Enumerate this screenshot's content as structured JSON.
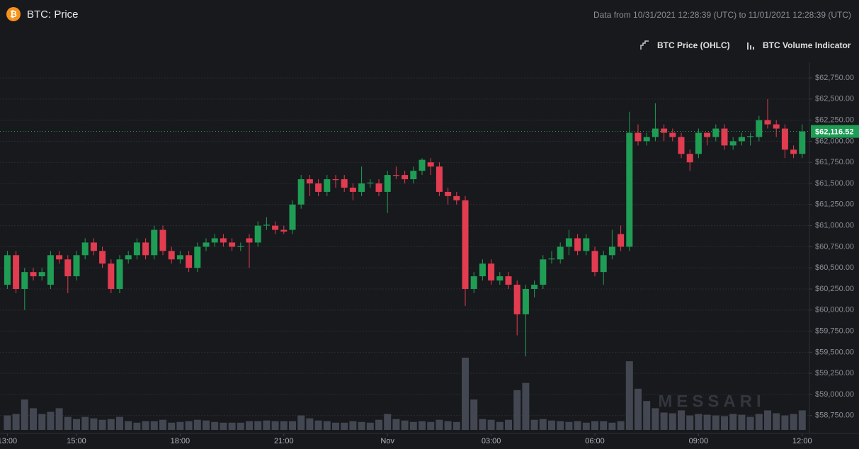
{
  "chart_data": {
    "type": "candlestick",
    "title": "BTC: Price",
    "subtitle": "Data from 10/31/2021 12:28:39 (UTC) to 11/01/2021 12:28:39 (UTC)",
    "legend": [
      "BTC Price (OHLC)",
      "BTC Volume Indicator"
    ],
    "watermark": "MESSARI",
    "last_price_label": "$62,116.52",
    "up_color": "#1f9d55",
    "down_color": "#e23c50",
    "volume_color": "#434751",
    "grid": true,
    "xticks": [
      {
        "value": 0,
        "label": "13:00"
      },
      {
        "value": 8,
        "label": "15:00"
      },
      {
        "value": 20,
        "label": "18:00"
      },
      {
        "value": 32,
        "label": "21:00"
      },
      {
        "value": 44,
        "label": "Nov"
      },
      {
        "value": 56,
        "label": "03:00"
      },
      {
        "value": 68,
        "label": "06:00"
      },
      {
        "value": 80,
        "label": "09:00"
      },
      {
        "value": 92,
        "label": "12:00"
      }
    ],
    "ylim": [
      58580,
      62935
    ],
    "yticks": [
      {
        "value": 58750,
        "label": "$58,750.00"
      },
      {
        "value": 59000,
        "label": "$59,000.00"
      },
      {
        "value": 59250,
        "label": "$59,250.00"
      },
      {
        "value": 59500,
        "label": "$59,500.00"
      },
      {
        "value": 59750,
        "label": "$59,750.00"
      },
      {
        "value": 60000,
        "label": "$60,000.00"
      },
      {
        "value": 60250,
        "label": "$60,250.00"
      },
      {
        "value": 60500,
        "label": "$60,500.00"
      },
      {
        "value": 60750,
        "label": "$60,750.00"
      },
      {
        "value": 61000,
        "label": "$61,000.00"
      },
      {
        "value": 61250,
        "label": "$61,250.00"
      },
      {
        "value": 61500,
        "label": "$61,500.00"
      },
      {
        "value": 61750,
        "label": "$61,750.00"
      },
      {
        "value": 62000,
        "label": "$62,000.00"
      },
      {
        "value": 62250,
        "label": "$62,250.00"
      },
      {
        "value": 62500,
        "label": "$62,500.00"
      },
      {
        "value": 62750,
        "label": "$62,750.00"
      }
    ],
    "open": [
      60300,
      60650,
      60250,
      60450,
      60400,
      60300,
      60650,
      60600,
      60400,
      60650,
      60800,
      60700,
      60550,
      60250,
      60600,
      60650,
      60800,
      60650,
      60950,
      60700,
      60600,
      60650,
      60500,
      60750,
      60800,
      60850,
      60800,
      60750,
      60850,
      60800,
      61000,
      61000,
      60950,
      60950,
      61250,
      61550,
      61500,
      61400,
      61550,
      61550,
      61450,
      61400,
      61500,
      61500,
      61400,
      61600,
      61600,
      61550,
      61650,
      61750,
      61700,
      61400,
      61350,
      61300,
      60250,
      60400,
      60550,
      60350,
      60400,
      60300,
      59950,
      60250,
      60300,
      60600,
      60600,
      60750,
      60850,
      60700,
      60700,
      60450,
      60650,
      60900,
      60750,
      62100,
      62000,
      62050,
      62150,
      62100,
      62050,
      61850,
      61850,
      62100,
      62050,
      62150,
      61950,
      62000,
      62050,
      62050,
      62250,
      62200,
      62150,
      61900,
      61850
    ],
    "close": [
      60650,
      60250,
      60450,
      60400,
      60450,
      60650,
      60600,
      60400,
      60650,
      60800,
      60700,
      60550,
      60250,
      60600,
      60650,
      60800,
      60650,
      60950,
      60700,
      60600,
      60650,
      60500,
      60750,
      60800,
      60850,
      60800,
      60750,
      60760,
      60800,
      61000,
      61010,
      60950,
      60930,
      61250,
      61550,
      61500,
      61400,
      61550,
      61540,
      61450,
      61400,
      61500,
      61510,
      61400,
      61600,
      61590,
      61550,
      61650,
      61780,
      61700,
      61400,
      61350,
      61300,
      60250,
      60400,
      60550,
      60350,
      60400,
      60300,
      59950,
      60250,
      60300,
      60600,
      60610,
      60750,
      60850,
      60700,
      60850,
      60450,
      60650,
      60750,
      60750,
      62100,
      62000,
      62050,
      62150,
      62100,
      62050,
      61850,
      61750,
      62100,
      62050,
      62150,
      61950,
      62000,
      62050,
      62060,
      62250,
      62200,
      62150,
      61900,
      61850,
      62116.52
    ],
    "high": [
      60700,
      60700,
      60500,
      60500,
      60500,
      60700,
      60700,
      60650,
      60700,
      60850,
      60850,
      60750,
      60600,
      60650,
      60700,
      60850,
      60850,
      61000,
      61000,
      60750,
      60700,
      60700,
      60800,
      60850,
      60900,
      60900,
      60850,
      60800,
      60900,
      61050,
      61100,
      61050,
      61000,
      61300,
      61600,
      61600,
      61550,
      61600,
      61600,
      61600,
      61500,
      61700,
      61550,
      61550,
      61650,
      61700,
      61650,
      61700,
      61800,
      61800,
      61750,
      61450,
      61400,
      61350,
      60450,
      60600,
      60600,
      60450,
      60450,
      60350,
      60300,
      60350,
      60650,
      60700,
      60800,
      60950,
      60900,
      60900,
      60750,
      60700,
      60950,
      61000,
      62350,
      62200,
      62100,
      62450,
      62200,
      62150,
      62100,
      61900,
      62150,
      62100,
      62200,
      62200,
      62050,
      62100,
      62100,
      62300,
      62500,
      62250,
      62200,
      61950,
      62200
    ],
    "low": [
      60250,
      60200,
      60000,
      60350,
      60350,
      60250,
      60550,
      60200,
      60350,
      60600,
      60650,
      60500,
      60200,
      60200,
      60550,
      60600,
      60600,
      60600,
      60650,
      60550,
      60550,
      60450,
      60450,
      60700,
      60750,
      60750,
      60700,
      60700,
      60500,
      60750,
      60950,
      60900,
      60900,
      60900,
      61200,
      61350,
      61350,
      61350,
      61450,
      61400,
      61300,
      61350,
      61450,
      61350,
      61150,
      61550,
      61500,
      61500,
      61600,
      61600,
      61350,
      61250,
      61250,
      60050,
      60200,
      60350,
      60300,
      60300,
      60250,
      59700,
      59450,
      60150,
      60250,
      60550,
      60550,
      60650,
      60650,
      60650,
      60400,
      60300,
      60600,
      60700,
      60700,
      61950,
      61950,
      62000,
      62000,
      62000,
      61800,
      61650,
      61800,
      61950,
      62000,
      61900,
      61900,
      61950,
      61950,
      62000,
      62150,
      62050,
      61800,
      61800,
      61800
    ],
    "volume": [
      20,
      22,
      42,
      30,
      22,
      25,
      30,
      18,
      15,
      18,
      16,
      14,
      15,
      18,
      12,
      10,
      12,
      12,
      14,
      10,
      11,
      12,
      14,
      13,
      11,
      10,
      10,
      10,
      12,
      12,
      13,
      12,
      12,
      12,
      20,
      16,
      13,
      12,
      10,
      10,
      12,
      11,
      10,
      14,
      22,
      15,
      13,
      11,
      12,
      11,
      14,
      12,
      11,
      100,
      42,
      15,
      14,
      11,
      14,
      55,
      65,
      14,
      15,
      13,
      12,
      11,
      12,
      10,
      12,
      12,
      10,
      12,
      95,
      57,
      40,
      30,
      24,
      23,
      27,
      20,
      22,
      21,
      20,
      19,
      22,
      21,
      18,
      22,
      27,
      23,
      20,
      22,
      27
    ]
  }
}
